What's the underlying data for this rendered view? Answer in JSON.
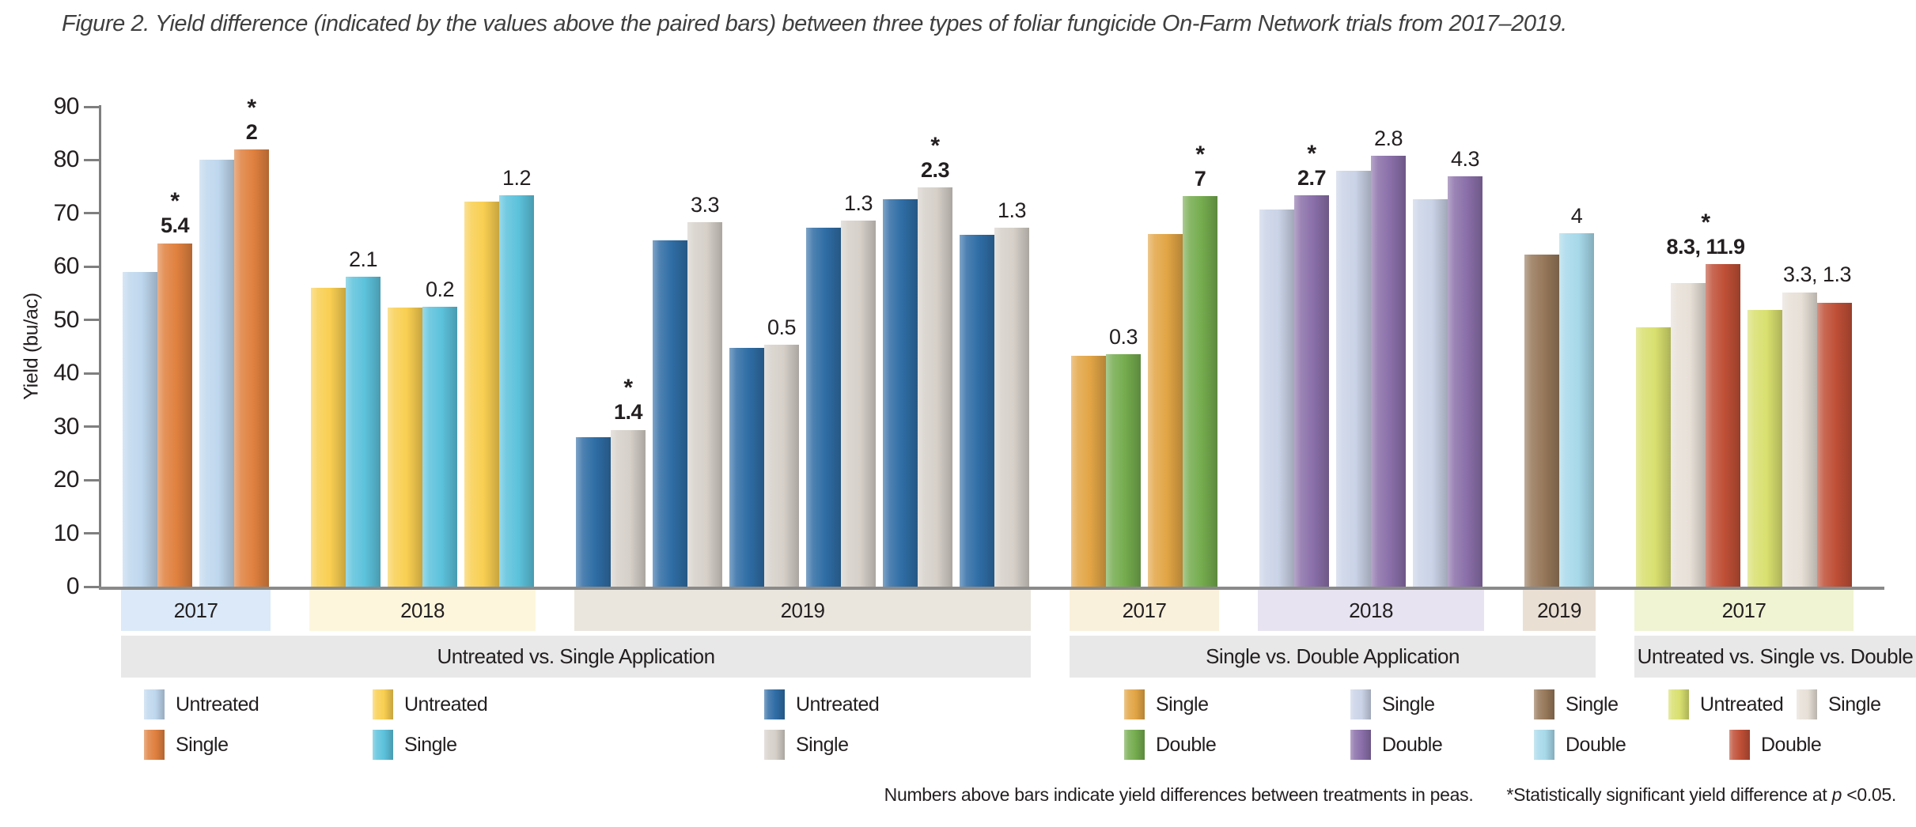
{
  "figure_title": "Figure 2. Yield difference (indicated by the values above the paired bars) between three types of foliar fungicide On-Farm Network trials from 2017–2019.",
  "chart_data": {
    "type": "bar",
    "title": "Figure 2. Yield difference between three types of foliar fungicide On-Farm Network trials from 2017–2019",
    "xlabel": "",
    "ylabel": "Yield (bu/ac)",
    "ylim": [
      0,
      90
    ],
    "y_step": 10,
    "grid": false,
    "note": "Paired/grouped bars; value above each group is the yield difference between treatments; * marks statistical significance",
    "sections": [
      {
        "label": "Untreated vs. Single Application",
        "years": [
          {
            "year": "2017",
            "band_color": "#dbe9f8",
            "series": [
              "Untreated",
              "Single"
            ],
            "colors": [
              "#bfd7ee",
              "#e0813f"
            ],
            "groups": [
              {
                "values": [
                  59.0,
                  64.4
                ],
                "diff": "5.4",
                "sig": true
              },
              {
                "values": [
                  80.0,
                  82.0
                ],
                "diff": "2",
                "sig": true
              }
            ]
          },
          {
            "year": "2018",
            "band_color": "#fdf6dd",
            "series": [
              "Untreated",
              "Single"
            ],
            "colors": [
              "#f9cf51",
              "#5cc2dc"
            ],
            "groups": [
              {
                "values": [
                  56.0,
                  58.1
                ],
                "diff": "2.1",
                "sig": false
              },
              {
                "values": [
                  52.3,
                  52.5
                ],
                "diff": "0.2",
                "sig": false
              },
              {
                "values": [
                  72.2,
                  73.4
                ],
                "diff": "1.2",
                "sig": false
              }
            ]
          },
          {
            "year": "2019",
            "band_color": "#eae6de",
            "series": [
              "Untreated",
              "Single"
            ],
            "colors": [
              "#2f6da5",
              "#d6d0c9"
            ],
            "groups": [
              {
                "values": [
                  28.0,
                  29.4
                ],
                "diff": "1.4",
                "sig": true
              },
              {
                "values": [
                  65.0,
                  68.3
                ],
                "diff": "3.3",
                "sig": false
              },
              {
                "values": [
                  44.8,
                  45.3
                ],
                "diff": "0.5",
                "sig": false
              },
              {
                "values": [
                  67.3,
                  68.6
                ],
                "diff": "1.3",
                "sig": false
              },
              {
                "values": [
                  72.6,
                  74.9
                ],
                "diff": "2.3",
                "sig": true
              },
              {
                "values": [
                  66.0,
                  67.3
                ],
                "diff": "1.3",
                "sig": false
              }
            ]
          }
        ]
      },
      {
        "label": "Single vs. Double Application",
        "years": [
          {
            "year": "2017",
            "band_color": "#faf1dc",
            "series": [
              "Single",
              "Double"
            ],
            "colors": [
              "#e2a545",
              "#75ac4e"
            ],
            "groups": [
              {
                "values": [
                  43.3,
                  43.6
                ],
                "diff": "0.3",
                "sig": false
              },
              {
                "values": [
                  66.2,
                  73.2
                ],
                "diff": "7",
                "sig": true
              }
            ]
          },
          {
            "year": "2018",
            "band_color": "#e7e3f0",
            "series": [
              "Single",
              "Double"
            ],
            "colors": [
              "#cad3e7",
              "#8a6fa9"
            ],
            "groups": [
              {
                "values": [
                  70.7,
                  73.4
                ],
                "diff": "2.7",
                "sig": true
              },
              {
                "values": [
                  78.0,
                  80.8
                ],
                "diff": "2.8",
                "sig": false
              },
              {
                "values": [
                  72.6,
                  76.9
                ],
                "diff": "4.3",
                "sig": false
              }
            ]
          },
          {
            "year": "2019",
            "band_color": "#eadfd3",
            "series": [
              "Single",
              "Double"
            ],
            "colors": [
              "#97785a",
              "#a7d9ea"
            ],
            "groups": [
              {
                "values": [
                  62.3,
                  66.3
                ],
                "diff": "4",
                "sig": false
              }
            ]
          }
        ]
      },
      {
        "label": "Untreated vs. Single vs. Double",
        "years": [
          {
            "year": "2017",
            "band_color": "#f0f4d3",
            "series": [
              "Untreated",
              "Single",
              "Double"
            ],
            "colors": [
              "#d9e06f",
              "#e7e0d7",
              "#bf4f36"
            ],
            "groups": [
              {
                "values": [
                  48.6,
                  56.9,
                  60.5
                ],
                "diff": "8.3, 11.9",
                "sig": true
              },
              {
                "values": [
                  51.9,
                  55.2,
                  53.2
                ],
                "diff": "3.3, 1.3",
                "sig": false
              }
            ]
          }
        ]
      }
    ]
  },
  "axis": {
    "y_label": "Yield (bu/ac)"
  },
  "legend": {
    "columns": [
      {
        "items": [
          {
            "label": "Untreated",
            "color": "#bfd7ee"
          },
          {
            "label": "Single",
            "color": "#e0813f"
          }
        ]
      },
      {
        "items": [
          {
            "label": "Untreated",
            "color": "#f9cf51"
          },
          {
            "label": "Single",
            "color": "#5cc2dc"
          }
        ]
      },
      {
        "items": [
          {
            "label": "Untreated",
            "color": "#2f6da5"
          },
          {
            "label": "Single",
            "color": "#d6d0c9"
          }
        ]
      },
      {
        "items": [
          {
            "label": "Single",
            "color": "#e2a545"
          },
          {
            "label": "Double",
            "color": "#75ac4e"
          }
        ]
      },
      {
        "items": [
          {
            "label": "Single",
            "color": "#cad3e7"
          },
          {
            "label": "Double",
            "color": "#8a6fa9"
          }
        ]
      },
      {
        "items": [
          {
            "label": "Single",
            "color": "#97785a"
          },
          {
            "label": "Double",
            "color": "#a7d9ea"
          }
        ]
      },
      {
        "items": [
          {
            "label": "Untreated",
            "color": "#d9e06f"
          },
          {
            "label": "Single",
            "color": "#e7e0d7"
          },
          {
            "label": "Double",
            "color": "#bf4f36"
          }
        ]
      }
    ]
  },
  "footnotes": {
    "left": "Numbers above bars indicate yield differences between treatments in peas.",
    "right_prefix": "*Statistically significant yield difference at ",
    "right_p": "p",
    "right_suffix": " <0.05."
  }
}
